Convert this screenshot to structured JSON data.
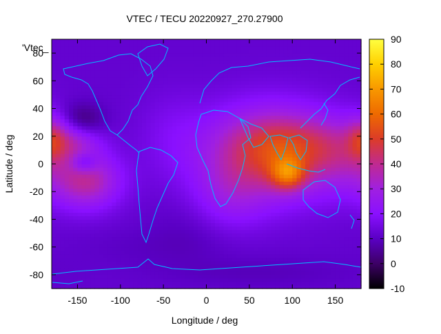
{
  "chart_data": {
    "type": "heatmap",
    "title": "VTEC / TECU 20220927_270.27900",
    "xlabel": "Longitude / deg",
    "ylabel": "Latitude / deg",
    "overlay_label": "'Vtec_",
    "xlim": [
      -180,
      180
    ],
    "ylim": [
      -90,
      90
    ],
    "x_ticks": [
      -150,
      -100,
      -50,
      0,
      50,
      100,
      150
    ],
    "y_ticks": [
      -80,
      -60,
      -40,
      -20,
      0,
      20,
      40,
      60,
      80
    ],
    "colorbar": {
      "range": [
        -10,
        90
      ],
      "ticks": [
        -10,
        0,
        10,
        20,
        30,
        40,
        50,
        60,
        70,
        80,
        90
      ],
      "palette": [
        "#000000",
        "#3d0066",
        "#5a00c4",
        "#8a10ff",
        "#a020e0",
        "#c02a90",
        "#dc3c28",
        "#ee6a00",
        "#f89800",
        "#ffd000",
        "#ffff40"
      ]
    },
    "features": [
      {
        "type": "background",
        "value": 12
      },
      {
        "type": "anomaly",
        "lon": 75,
        "lat": 8,
        "sx": 52,
        "sy": 23,
        "value": 34
      },
      {
        "type": "anomaly",
        "lon": 110,
        "lat": 14,
        "sx": 48,
        "sy": 14,
        "value": 12
      },
      {
        "type": "anomaly",
        "lon": 160,
        "lat": 5,
        "sx": 28,
        "sy": 18,
        "value": 10
      },
      {
        "type": "anomaly",
        "lon": 95,
        "lat": -7,
        "sx": 14,
        "sy": 8,
        "value": 28
      },
      {
        "type": "anomaly",
        "lon": 25,
        "lat": -25,
        "sx": 30,
        "sy": 18,
        "value": 10
      },
      {
        "type": "anomaly",
        "lon": -140,
        "lat": -12,
        "sx": 28,
        "sy": 14,
        "value": 26
      },
      {
        "type": "anomaly",
        "lon": -142,
        "lat": 1,
        "sx": 10,
        "sy": 5,
        "value": -14
      },
      {
        "type": "anomaly",
        "lon": -155,
        "lat": 18,
        "sx": 22,
        "sy": 10,
        "value": 18
      },
      {
        "type": "anomaly",
        "lon": -145,
        "lat": 30,
        "sx": 18,
        "sy": 9,
        "value": -14
      },
      {
        "type": "anomaly",
        "lon": -180,
        "lat": 18,
        "sx": 12,
        "sy": 12,
        "value": 16
      },
      {
        "type": "anomaly",
        "lon": -40,
        "lat": 20,
        "sx": 28,
        "sy": 22,
        "value": 5
      },
      {
        "type": "anomaly",
        "lon": -60,
        "lat": -60,
        "sx": 60,
        "sy": 10,
        "value": -2
      },
      {
        "type": "anomaly",
        "lon": 60,
        "lat": -78,
        "sx": 80,
        "sy": 8,
        "value": -3
      },
      {
        "type": "anomaly",
        "lon": -10,
        "lat": -45,
        "sx": 35,
        "sy": 15,
        "value": -3
      }
    ]
  }
}
